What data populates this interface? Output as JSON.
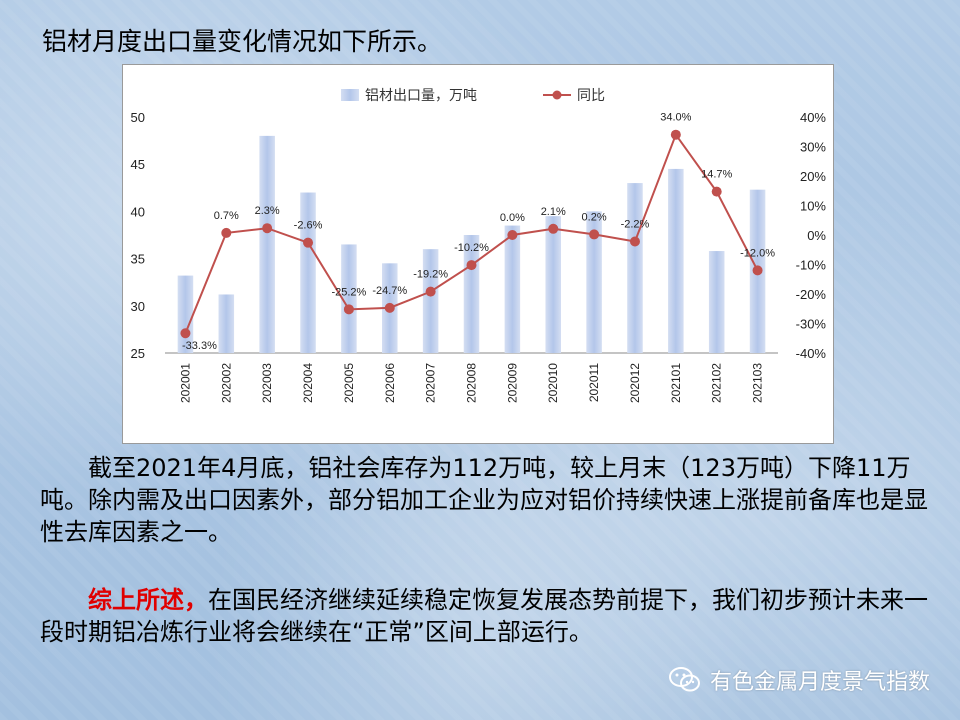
{
  "intro": "铝材月度出口量变化情况如下所示。",
  "chart_data": {
    "type": "bar+line",
    "categories": [
      "202001",
      "202002",
      "202003",
      "202004",
      "202005",
      "202006",
      "202007",
      "202008",
      "202009",
      "202010",
      "202011",
      "202012",
      "202101",
      "202102",
      "202103"
    ],
    "series": [
      {
        "name": "铝材出口量，万吨",
        "type": "bar",
        "axis": "left",
        "values": [
          33.2,
          31.2,
          48.0,
          42.0,
          36.5,
          34.5,
          36.0,
          37.5,
          38.5,
          39.5,
          40.0,
          43.0,
          44.5,
          35.8,
          42.3
        ]
      },
      {
        "name": "同比",
        "type": "line",
        "axis": "right",
        "values": [
          -33.3,
          0.7,
          2.3,
          -2.6,
          -25.2,
          -24.7,
          -19.2,
          -10.2,
          0.0,
          2.1,
          0.2,
          -2.2,
          34.0,
          14.7,
          -12.0
        ],
        "labels": [
          "-33.3%",
          "0.7%",
          "2.3%",
          "-2.6%",
          "-25.2%",
          "-24.7%",
          "-19.2%",
          "-10.2%",
          "0.0%",
          "2.1%",
          "0.2%",
          "-2.2%",
          "34.0%",
          "14.7%",
          "-12.0%"
        ]
      }
    ],
    "y_left": {
      "min": 25,
      "max": 50,
      "ticks": [
        "25",
        "30",
        "35",
        "40",
        "45",
        "50"
      ]
    },
    "y_right": {
      "min": -40,
      "max": 40,
      "ticks": [
        "-40%",
        "-30%",
        "-20%",
        "-10%",
        "0%",
        "10%",
        "20%",
        "30%",
        "40%"
      ]
    },
    "grid": false,
    "legend": "top-center",
    "colors": {
      "bar": "#b3c6ea",
      "line": "#c0504d"
    }
  },
  "para1": "截至2021年4月底，铝社会库存为112万吨，较上月末（123万吨）下降11万吨。除内需及出口因素外，部分铝加工企业为应对铝价持续快速上涨提前备库也是显性去库因素之一。",
  "para2_highlight": "综上所述，",
  "para2_text": "在国民经济继续延续稳定恢复发展态势前提下，我们初步预计未来一段时期铝冶炼行业将会继续在“正常”区间上部运行。",
  "source": "有色金属月度景气指数",
  "icons": {
    "source": "wechat-icon"
  }
}
